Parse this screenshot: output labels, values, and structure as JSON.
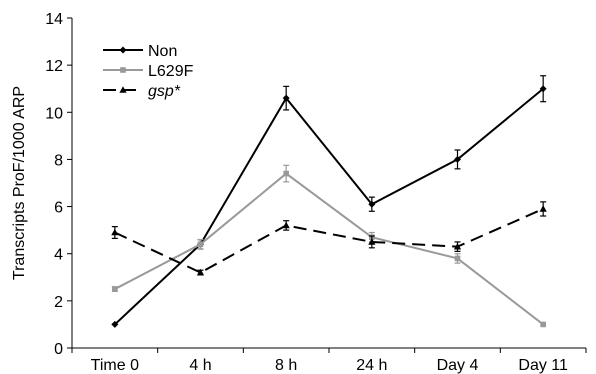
{
  "chart_data": {
    "type": "line",
    "categories": [
      "Time 0",
      "4 h",
      "8 h",
      "24 h",
      "Day 4",
      "Day 11"
    ],
    "ylabel": "Transcripts ProF/1000 ARP",
    "xlabel": "",
    "title": "",
    "ylim": [
      0,
      14
    ],
    "yticks": [
      0,
      2,
      4,
      6,
      8,
      10,
      12,
      14
    ],
    "grid": false,
    "legend_position": "top-left",
    "series": [
      {
        "name": "Non",
        "italic": false,
        "color": "#000000",
        "dash": "solid",
        "marker": "diamond",
        "values": [
          1.0,
          4.4,
          10.6,
          6.1,
          8.0,
          11.0
        ],
        "errors": [
          0.0,
          0.2,
          0.5,
          0.3,
          0.4,
          0.55
        ]
      },
      {
        "name": "L629F",
        "italic": false,
        "color": "#999999",
        "dash": "solid",
        "marker": "square",
        "values": [
          2.5,
          4.4,
          7.4,
          4.7,
          3.8,
          1.0
        ],
        "errors": [
          0.1,
          0.2,
          0.35,
          0.2,
          0.2,
          0.0
        ]
      },
      {
        "name": "gsp*",
        "italic": true,
        "color": "#000000",
        "dash": "dashed",
        "marker": "triangle",
        "values": [
          4.9,
          3.2,
          5.2,
          4.5,
          4.3,
          5.9
        ],
        "errors": [
          0.25,
          0.1,
          0.2,
          0.25,
          0.2,
          0.3
        ]
      }
    ]
  }
}
